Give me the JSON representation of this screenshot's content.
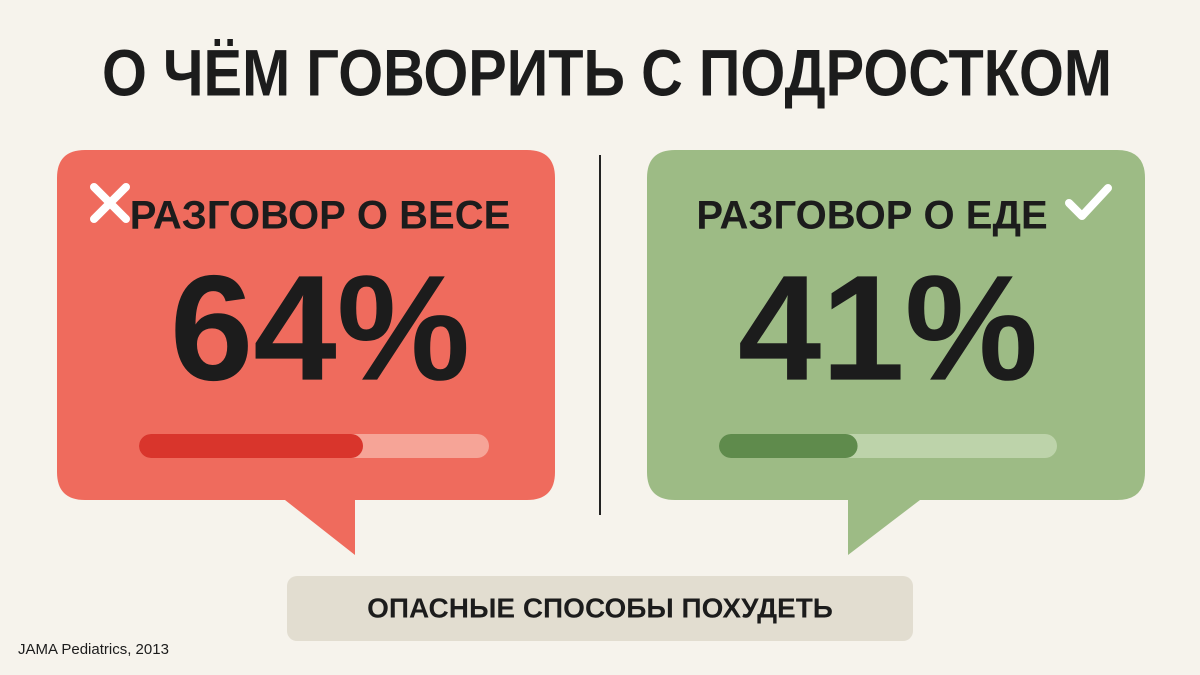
{
  "chart_data": {
    "type": "bar",
    "title": "О ЧЁМ ГОВОРИТЬ С ПОДРОСТКОМ",
    "categories": [
      "РАЗГОВОР О ВЕСЕ",
      "РАЗГОВОР О ЕДЕ"
    ],
    "values": [
      64,
      41
    ],
    "value_labels": [
      "64%",
      "41%"
    ],
    "colors": [
      "#d9352c",
      "#5f8b4c"
    ],
    "xlim": [
      0,
      100
    ],
    "annotation": "ОПАСНЫЕ СПОСОБЫ ПОХУДЕТЬ",
    "source": "JAMA Pediatrics, 2013"
  }
}
